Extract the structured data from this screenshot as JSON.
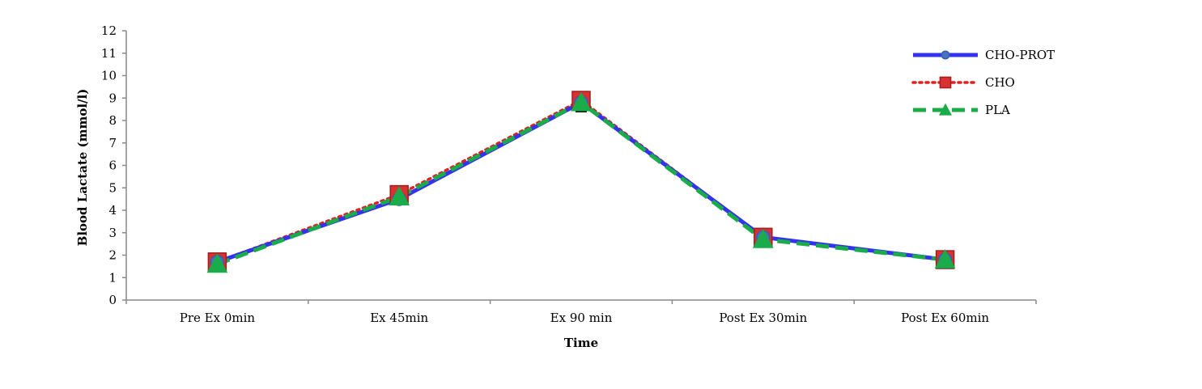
{
  "chart_data": {
    "type": "line",
    "title": "",
    "xlabel": "Time",
    "ylabel": "Blood Lactate (mmol/l)",
    "ylim": [
      0,
      12
    ],
    "yticks": [
      0,
      1,
      2,
      3,
      4,
      5,
      6,
      7,
      8,
      9,
      10,
      11,
      12
    ],
    "categories": [
      "Pre Ex 0min",
      "Ex 45min",
      "Ex 90 min",
      "Post Ex 30min",
      "Post Ex 60min"
    ],
    "grid": false,
    "legend_position": "top-right",
    "series": [
      {
        "name": "CHO-PROT",
        "values": [
          1.7,
          4.5,
          8.8,
          2.8,
          1.8
        ],
        "color": "#3333ee",
        "marker": "circle",
        "line_style": "solid"
      },
      {
        "name": "CHO",
        "values": [
          1.7,
          4.7,
          8.9,
          2.8,
          1.8
        ],
        "color": "#e02020",
        "marker": "square",
        "line_style": "dotted"
      },
      {
        "name": "PLA",
        "values": [
          1.6,
          4.6,
          8.8,
          2.7,
          1.8
        ],
        "color": "#1aab4a",
        "marker": "triangle",
        "line_style": "dashed"
      }
    ],
    "error_bars": [
      {
        "category": "Ex 90 min",
        "low": 8.4,
        "high": 9.2
      }
    ]
  }
}
